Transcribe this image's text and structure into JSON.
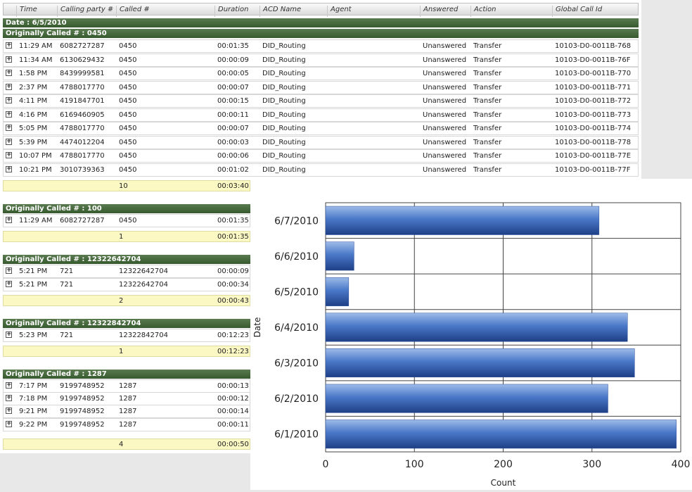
{
  "grid": {
    "columns": [
      "Time",
      "Calling party #",
      "Called #",
      "Duration",
      "ACD Name",
      "Agent",
      "Answered",
      "Action",
      "Global Call Id"
    ],
    "date_group": "Date : 6/5/2010",
    "groups": [
      {
        "label": "Originally Called # : 0450",
        "rows": [
          {
            "time": "11:29 AM",
            "calling": "6082727287",
            "called": "0450",
            "duration": "00:01:35",
            "acd": "DID_Routing",
            "answered": "Unanswered",
            "action": "Transfer",
            "id": "10103-D0-0011B-768"
          },
          {
            "time": "11:34 AM",
            "calling": "6130629432",
            "called": "0450",
            "duration": "00:00:09",
            "acd": "DID_Routing",
            "answered": "Unanswered",
            "action": "Transfer",
            "id": "10103-D0-0011B-76F"
          },
          {
            "time": "1:58 PM",
            "calling": "8439999581",
            "called": "0450",
            "duration": "00:00:05",
            "acd": "DID_Routing",
            "answered": "Unanswered",
            "action": "Transfer",
            "id": "10103-D0-0011B-770"
          },
          {
            "time": "2:37 PM",
            "calling": "4788017770",
            "called": "0450",
            "duration": "00:00:07",
            "acd": "DID_Routing",
            "answered": "Unanswered",
            "action": "Transfer",
            "id": "10103-D0-0011B-771"
          },
          {
            "time": "4:11 PM",
            "calling": "4191847701",
            "called": "0450",
            "duration": "00:00:15",
            "acd": "DID_Routing",
            "answered": "Unanswered",
            "action": "Transfer",
            "id": "10103-D0-0011B-772"
          },
          {
            "time": "4:16 PM",
            "calling": "6169460905",
            "called": "0450",
            "duration": "00:00:11",
            "acd": "DID_Routing",
            "answered": "Unanswered",
            "action": "Transfer",
            "id": "10103-D0-0011B-773"
          },
          {
            "time": "5:05 PM",
            "calling": "4788017770",
            "called": "0450",
            "duration": "00:00:07",
            "acd": "DID_Routing",
            "answered": "Unanswered",
            "action": "Transfer",
            "id": "10103-D0-0011B-774"
          },
          {
            "time": "5:39 PM",
            "calling": "4474012204",
            "called": "0450",
            "duration": "00:00:03",
            "acd": "DID_Routing",
            "answered": "Unanswered",
            "action": "Transfer",
            "id": "10103-D0-0011B-778"
          },
          {
            "time": "10:07 PM",
            "calling": "4788017770",
            "called": "0450",
            "duration": "00:00:06",
            "acd": "DID_Routing",
            "answered": "Unanswered",
            "action": "Transfer",
            "id": "10103-D0-0011B-77E"
          },
          {
            "time": "10:21 PM",
            "calling": "3010739363",
            "called": "0450",
            "duration": "00:01:02",
            "acd": "DID_Routing",
            "answered": "Unanswered",
            "action": "Transfer",
            "id": "10103-D0-0011B-77F"
          }
        ],
        "summary": {
          "count": "10",
          "duration": "00:03:40"
        }
      },
      {
        "label": "Originally Called # : 100",
        "rows": [
          {
            "time": "11:29 AM",
            "calling": "6082727287",
            "called": "0450",
            "duration": "00:01:35"
          }
        ],
        "summary": {
          "count": "1",
          "duration": "00:01:35"
        }
      },
      {
        "label": "Originally Called # : 12322642704",
        "rows": [
          {
            "time": "5:21 PM",
            "calling": "721",
            "called": "12322642704",
            "duration": "00:00:09"
          },
          {
            "time": "5:21 PM",
            "calling": "721",
            "called": "12322642704",
            "duration": "00:00:34"
          }
        ],
        "summary": {
          "count": "2",
          "duration": "00:00:43"
        }
      },
      {
        "label": "Originally Called # : 12322842704",
        "rows": [
          {
            "time": "5:23 PM",
            "calling": "721",
            "called": "12322842704",
            "duration": "00:12:23"
          }
        ],
        "summary": {
          "count": "1",
          "duration": "00:12:23"
        }
      },
      {
        "label": "Originally Called # : 1287",
        "rows": [
          {
            "time": "7:17 PM",
            "calling": "9199748952",
            "called": "1287",
            "duration": "00:00:13"
          },
          {
            "time": "7:18 PM",
            "calling": "9199748952",
            "called": "1287",
            "duration": "00:00:12"
          },
          {
            "time": "9:21 PM",
            "calling": "9199748952",
            "called": "1287",
            "duration": "00:00:14"
          },
          {
            "time": "9:22 PM",
            "calling": "9199748952",
            "called": "1287",
            "duration": "00:00:11"
          }
        ],
        "summary": {
          "count": "4",
          "duration": "00:00:50"
        }
      }
    ]
  },
  "colors": {
    "band": "#3f6237",
    "summary": "#fbf8c4",
    "bar": "#4a78c8"
  },
  "chart_data": {
    "type": "bar",
    "orientation": "horizontal",
    "categories": [
      "6/1/2010",
      "6/2/2010",
      "6/3/2010",
      "6/4/2010",
      "6/5/2010",
      "6/6/2010",
      "6/7/2010"
    ],
    "values": [
      395,
      318,
      348,
      340,
      26,
      32,
      308
    ],
    "xlabel": "Count",
    "ylabel": "Date",
    "xlim": [
      0,
      400
    ],
    "xticks": [
      "0",
      "100",
      "200",
      "300",
      "400"
    ],
    "grid": true
  }
}
